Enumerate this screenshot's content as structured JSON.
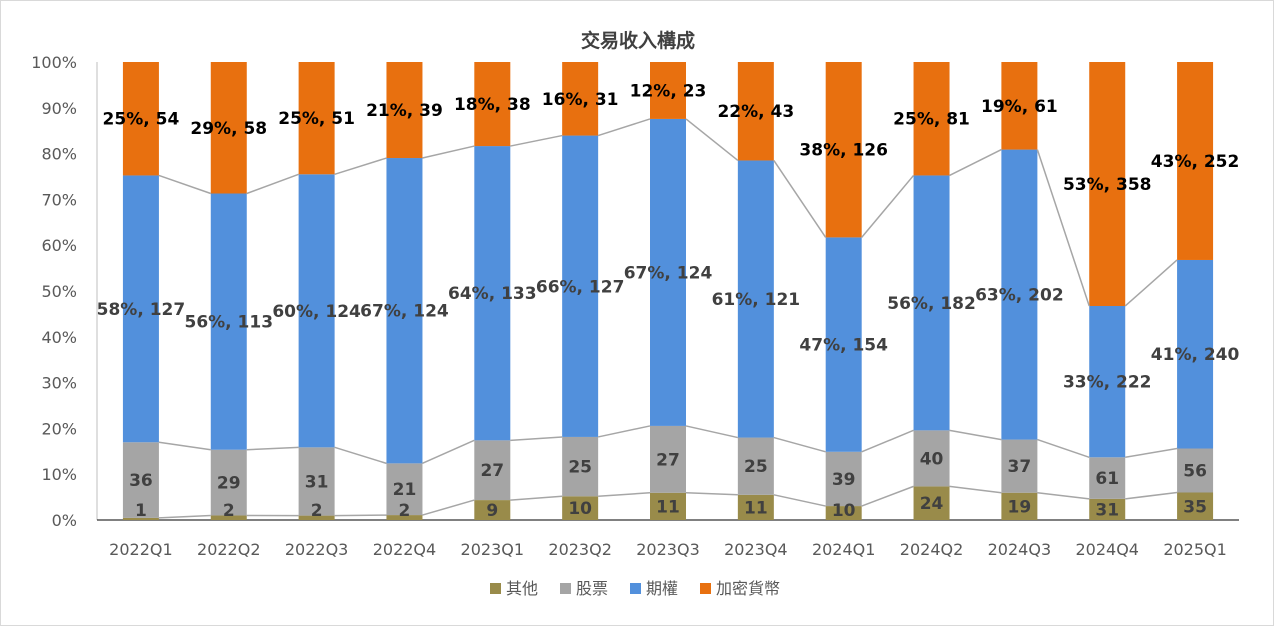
{
  "chart_data": {
    "type": "bar",
    "stacked": "percent",
    "title": "交易收入構成",
    "categories": [
      "2022Q1",
      "2022Q2",
      "2022Q3",
      "2022Q4",
      "2023Q1",
      "2023Q2",
      "2023Q3",
      "2023Q4",
      "2024Q1",
      "2024Q2",
      "2024Q3",
      "2024Q4",
      "2025Q1"
    ],
    "series": [
      {
        "name": "其他",
        "color": "#998b4a",
        "values": [
          1,
          2,
          2,
          2,
          9,
          10,
          11,
          11,
          10,
          24,
          19,
          31,
          35
        ]
      },
      {
        "name": "股票",
        "color": "#a5a5a5",
        "values": [
          36,
          29,
          31,
          21,
          27,
          25,
          27,
          25,
          39,
          40,
          37,
          61,
          56
        ]
      },
      {
        "name": "期權",
        "color": "#5290dc",
        "values": [
          127,
          113,
          124,
          124,
          133,
          127,
          124,
          121,
          154,
          182,
          202,
          222,
          240
        ],
        "labels": [
          "58%, 127",
          "56%, 113",
          "60%, 124",
          "67%, 124",
          "64%, 133",
          "66%, 127",
          "67%, 124",
          "61%, 121",
          "47%, 154",
          "56%, 182",
          "63%, 202",
          "33%, 222",
          "41%, 240"
        ]
      },
      {
        "name": "加密貨幣",
        "color": "#e8700f",
        "values": [
          54,
          58,
          51,
          39,
          38,
          31,
          23,
          43,
          126,
          81,
          61,
          358,
          252
        ],
        "labels": [
          "25%, 54",
          "29%, 58",
          "25%, 51",
          "21%, 39",
          "18%, 38",
          "16%, 31",
          "12%, 23",
          "22%, 43",
          "38%, 126",
          "25%, 81",
          "19%, 61",
          "53%, 358",
          "43%, 252"
        ]
      }
    ],
    "yticks": [
      "0%",
      "10%",
      "20%",
      "30%",
      "40%",
      "50%",
      "60%",
      "70%",
      "80%",
      "90%",
      "100%"
    ],
    "ylim": [
      0,
      100
    ],
    "series_lines": true,
    "legend": "bottom"
  }
}
